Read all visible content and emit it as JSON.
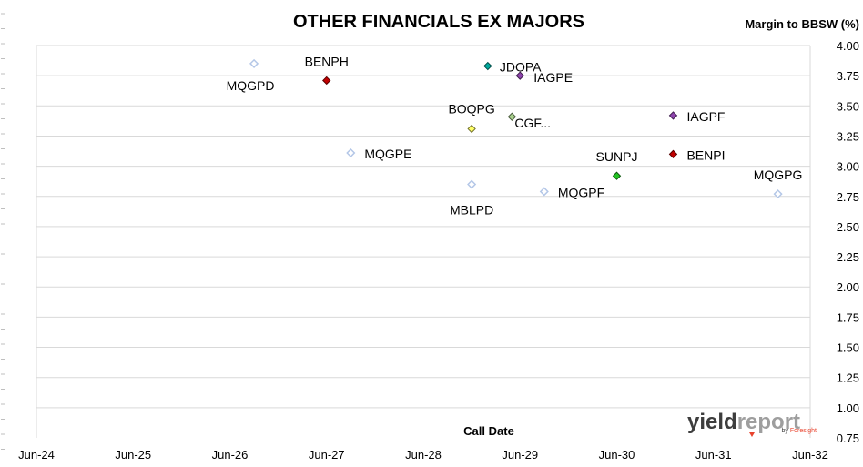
{
  "chart_data": {
    "type": "scatter",
    "title": "OTHER FINANCIALS EX MAJORS",
    "ylabel": "Margin to BBSW (%)",
    "xlabel": "Call Date",
    "x_ticks": [
      "Jun-24",
      "Jun-25",
      "Jun-26",
      "Jun-27",
      "Jun-28",
      "Jun-29",
      "Jun-30",
      "Jun-31",
      "Jun-32"
    ],
    "y_ticks": [
      "0.75",
      "1.00",
      "1.25",
      "1.50",
      "1.75",
      "2.00",
      "2.25",
      "2.50",
      "2.75",
      "3.00",
      "3.25",
      "3.50",
      "3.75",
      "4.00"
    ],
    "xlim": [
      "2024-06",
      "2032-06"
    ],
    "ylim": [
      0.75,
      4.0
    ],
    "grid": "horizontal",
    "points": [
      {
        "label": "MQGPD",
        "x": "2026-09",
        "y": 3.85,
        "color": "#b4c7e7",
        "filled": false
      },
      {
        "label": "BENPH",
        "x": "2027-06",
        "y": 3.71,
        "color": "#c00000",
        "filled": true
      },
      {
        "label": "MQGPE",
        "x": "2027-09",
        "y": 3.11,
        "color": "#b4c7e7",
        "filled": false
      },
      {
        "label": "BOQPG",
        "x": "2028-12",
        "y": 3.31,
        "color": "#ffff66",
        "filled": true
      },
      {
        "label": "MBLPD",
        "x": "2028-12",
        "y": 2.85,
        "color": "#b4c7e7",
        "filled": false
      },
      {
        "label": "JDOPA",
        "x": "2029-02",
        "y": 3.83,
        "color": "#00a99d",
        "filled": true
      },
      {
        "label": "CGF...",
        "x": "2029-05",
        "y": 3.41,
        "color": "#a9d18e",
        "filled": true
      },
      {
        "label": "IAGPE",
        "x": "2029-06",
        "y": 3.75,
        "color": "#8e44ad",
        "filled": true
      },
      {
        "label": "MQGPF",
        "x": "2029-09",
        "y": 2.79,
        "color": "#b4c7e7",
        "filled": false
      },
      {
        "label": "SUNPJ",
        "x": "2030-06",
        "y": 2.92,
        "color": "#22c322",
        "filled": true
      },
      {
        "label": "IAGPF",
        "x": "2031-01",
        "y": 3.42,
        "color": "#8e44ad",
        "filled": true
      },
      {
        "label": "BENPI",
        "x": "2031-01",
        "y": 3.1,
        "color": "#c00000",
        "filled": true
      },
      {
        "label": "MQGPG",
        "x": "2032-02",
        "y": 2.77,
        "color": "#b4c7e7",
        "filled": false
      }
    ]
  },
  "logo": {
    "part1": "yield",
    "part2": "report",
    "sub_prefix": "by",
    "sub_brand": "Foresight",
    "color_dark": "#3d3d3d",
    "color_light": "#9e9e9e",
    "color_accent": "#e8432e"
  }
}
